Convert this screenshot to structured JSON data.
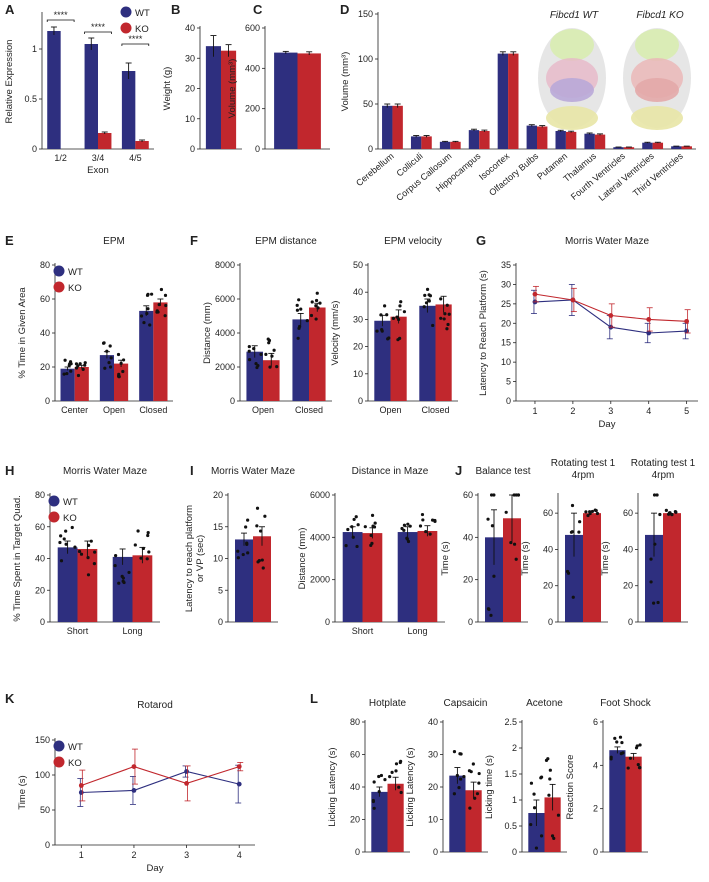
{
  "colors": {
    "wt": "#2e2f7f",
    "ko": "#c1272d",
    "text": "#222222",
    "brain_wt": "#b9a8d8",
    "brain_ko": "#e3a8a8"
  },
  "legend": {
    "wt": "WT",
    "ko": "KO"
  },
  "brain": {
    "wt_label": "Fibcd1 WT",
    "ko_label": "Fibcd1 KO"
  },
  "chart_data": [
    {
      "id": "A",
      "panel_label": "A",
      "type": "bar",
      "title": "",
      "ylabel": "Relative Expression",
      "xlabel": "Exon",
      "categories": [
        "1/2",
        "3/4",
        "4/5"
      ],
      "ylim": [
        0,
        1.35
      ],
      "yticks": [
        "0",
        "0.5",
        "1"
      ],
      "ytick_values": [
        0,
        0.5,
        1
      ],
      "legend": true,
      "significance": [
        "****",
        "****",
        "****"
      ],
      "series": [
        {
          "name": "WT",
          "values": [
            1.18,
            1.05,
            0.78
          ],
          "errors": [
            0.04,
            0.06,
            0.08
          ]
        },
        {
          "name": "KO",
          "values": [
            0.0,
            0.16,
            0.08
          ],
          "errors": [
            0.0,
            0.01,
            0.01
          ]
        }
      ]
    },
    {
      "id": "B",
      "panel_label": "B",
      "type": "bar",
      "title": "",
      "ylabel": "Weight (g)",
      "xlabel": "",
      "categories": [
        ""
      ],
      "ylim": [
        0,
        40
      ],
      "yticks": [
        "0",
        "10",
        "20",
        "30",
        "40"
      ],
      "ytick_values": [
        0,
        10,
        20,
        30,
        40
      ],
      "series": [
        {
          "name": "WT",
          "values": [
            34
          ],
          "errors": [
            3.5
          ]
        },
        {
          "name": "KO",
          "values": [
            32.5
          ],
          "errors": [
            2
          ]
        }
      ]
    },
    {
      "id": "C",
      "panel_label": "C",
      "type": "bar",
      "title": "",
      "ylabel": "Volume (mm³)",
      "xlabel": "",
      "categories": [
        ""
      ],
      "ylim": [
        0,
        600
      ],
      "yticks": [
        "0",
        "200",
        "400",
        "600"
      ],
      "ytick_values": [
        0,
        200,
        400,
        600
      ],
      "series": [
        {
          "name": "WT",
          "values": [
            478
          ],
          "errors": [
            6
          ]
        },
        {
          "name": "KO",
          "values": [
            474
          ],
          "errors": [
            8
          ]
        }
      ]
    },
    {
      "id": "D",
      "panel_label": "D",
      "type": "bar",
      "title": "",
      "ylabel": "Volume (mm³)",
      "xlabel": "",
      "categories": [
        "Cerebellum",
        "Colliculi",
        "Corpus Callosum",
        "Hippocampus",
        "Isocortex",
        "Olfactory Bulbs",
        "Putamen",
        "Thalamus",
        "Fourth Ventricles",
        "Lateral Ventricles",
        "Third Ventricles"
      ],
      "ylim": [
        0,
        150
      ],
      "yticks": [
        "0",
        "50",
        "100",
        "150"
      ],
      "ytick_values": [
        0,
        50,
        100,
        150
      ],
      "rotate_labels": true,
      "series": [
        {
          "name": "WT",
          "values": [
            48,
            14,
            8,
            21,
            106,
            26,
            20,
            17,
            2,
            7,
            3
          ],
          "errors": [
            2,
            1,
            0.5,
            1,
            2,
            1,
            0.8,
            0.8,
            0.2,
            0.5,
            0.2
          ]
        },
        {
          "name": "KO",
          "values": [
            48,
            14,
            8,
            20,
            106,
            25,
            19,
            16,
            2,
            7,
            3
          ],
          "errors": [
            2,
            1,
            0.5,
            1,
            2,
            1,
            0.8,
            0.8,
            0.2,
            0.5,
            0.2
          ]
        }
      ]
    },
    {
      "id": "E",
      "panel_label": "E",
      "type": "bar",
      "title": "EPM",
      "ylabel": "% Time in Given Area",
      "xlabel": "",
      "categories": [
        "Center",
        "Open",
        "Closed"
      ],
      "ylim": [
        0,
        80
      ],
      "yticks": [
        "0",
        "20",
        "40",
        "60",
        "80"
      ],
      "ytick_values": [
        0,
        20,
        40,
        60,
        80
      ],
      "legend": true,
      "dots": true,
      "series": [
        {
          "name": "WT",
          "values": [
            19,
            27,
            53
          ],
          "errors": [
            1,
            2,
            3
          ]
        },
        {
          "name": "KO",
          "values": [
            20,
            22,
            58
          ],
          "errors": [
            1,
            2,
            2
          ]
        }
      ]
    },
    {
      "id": "F1",
      "panel_label": "F",
      "type": "bar",
      "title": "EPM distance",
      "ylabel": "Distance (mm)",
      "xlabel": "",
      "categories": [
        "Open",
        "Closed"
      ],
      "ylim": [
        0,
        8000
      ],
      "yticks": [
        "0",
        "2000",
        "4000",
        "6000",
        "8000"
      ],
      "ytick_values": [
        0,
        2000,
        4000,
        6000,
        8000
      ],
      "dots": true,
      "series": [
        {
          "name": "WT",
          "values": [
            2900,
            4800
          ],
          "errors": [
            350,
            350
          ]
        },
        {
          "name": "KO",
          "values": [
            2400,
            5500
          ],
          "errors": [
            400,
            250
          ]
        }
      ]
    },
    {
      "id": "F2",
      "panel_label": "",
      "type": "bar",
      "title": "EPM velocity",
      "ylabel": "Velocity (mm/s)",
      "xlabel": "",
      "categories": [
        "Open",
        "Closed"
      ],
      "ylim": [
        0,
        50
      ],
      "yticks": [
        "0",
        "10",
        "20",
        "30",
        "40",
        "50"
      ],
      "ytick_values": [
        0,
        10,
        20,
        30,
        40,
        50
      ],
      "dots": true,
      "series": [
        {
          "name": "WT",
          "values": [
            29.5,
            35
          ],
          "errors": [
            2,
            2.5
          ]
        },
        {
          "name": "KO",
          "values": [
            31,
            35.5
          ],
          "errors": [
            2.5,
            3
          ]
        }
      ]
    },
    {
      "id": "G",
      "panel_label": "G",
      "type": "line",
      "title": "Morris Water Maze",
      "ylabel": "Latency to Reach Platform (s)",
      "xlabel": "Day",
      "x": [
        1,
        2,
        3,
        4,
        5
      ],
      "xlim": [
        0.5,
        5.3
      ],
      "ylim": [
        0,
        35
      ],
      "yticks": [
        "0",
        "5",
        "10",
        "15",
        "20",
        "25",
        "30",
        "35"
      ],
      "ytick_values": [
        0,
        5,
        10,
        15,
        20,
        25,
        30,
        35
      ],
      "xticks": [
        "1",
        "2",
        "3",
        "4",
        "5"
      ],
      "series": [
        {
          "name": "WT",
          "values": [
            25.5,
            26,
            19,
            17.5,
            18
          ],
          "errors": [
            3,
            4,
            3,
            2.5,
            2
          ]
        },
        {
          "name": "KO",
          "values": [
            27.5,
            26,
            22,
            21,
            20.5
          ],
          "errors": [
            2,
            3,
            3,
            3,
            3
          ]
        }
      ]
    },
    {
      "id": "H",
      "panel_label": "H",
      "type": "bar",
      "title": "Morris Water Maze",
      "ylabel": "% Time Spent in Target Quad.",
      "xlabel": "",
      "categories": [
        "Short",
        "Long"
      ],
      "ylim": [
        0,
        80
      ],
      "yticks": [
        "0",
        "20",
        "40",
        "60",
        "80"
      ],
      "ytick_values": [
        0,
        20,
        40,
        60,
        80
      ],
      "legend": true,
      "dots": true,
      "series": [
        {
          "name": "WT",
          "values": [
            47,
            41
          ],
          "errors": [
            4,
            5
          ]
        },
        {
          "name": "KO",
          "values": [
            46,
            42
          ],
          "errors": [
            5,
            5
          ]
        }
      ]
    },
    {
      "id": "I1",
      "panel_label": "I",
      "type": "bar",
      "title": "Morris Water Maze",
      "ylabel": "Latency to reach platform or VP (sec)",
      "xlabel": "",
      "categories": [
        ""
      ],
      "ylim": [
        0,
        20
      ],
      "yticks": [
        "0",
        "5",
        "10",
        "15",
        "20"
      ],
      "ytick_values": [
        0,
        5,
        10,
        15,
        20
      ],
      "dots": true,
      "series": [
        {
          "name": "WT",
          "values": [
            13
          ],
          "errors": [
            1
          ]
        },
        {
          "name": "KO",
          "values": [
            13.5
          ],
          "errors": [
            1.5
          ]
        }
      ]
    },
    {
      "id": "I2",
      "panel_label": "",
      "type": "bar",
      "title": "Distance in Maze",
      "ylabel": "Distance (mm)",
      "xlabel": "",
      "categories": [
        "Short",
        "Long"
      ],
      "ylim": [
        0,
        6000
      ],
      "yticks": [
        "0",
        "2000",
        "4000",
        "6000"
      ],
      "ytick_values": [
        0,
        2000,
        4000,
        6000
      ],
      "dots": true,
      "series": [
        {
          "name": "WT",
          "values": [
            4250,
            4250
          ],
          "errors": [
            250,
            250
          ]
        },
        {
          "name": "KO",
          "values": [
            4200,
            4300
          ],
          "errors": [
            250,
            250
          ]
        }
      ]
    },
    {
      "id": "J1",
      "panel_label": "J",
      "type": "bar",
      "title": "Balance test",
      "ylabel": "Time (s)",
      "xlabel": "",
      "categories": [
        ""
      ],
      "ylim": [
        0,
        60
      ],
      "yticks": [
        "0",
        "20",
        "40",
        "60"
      ],
      "ytick_values": [
        0,
        20,
        40,
        60
      ],
      "dots": true,
      "series": [
        {
          "name": "WT",
          "values": [
            40
          ],
          "errors": [
            13
          ]
        },
        {
          "name": "KO",
          "values": [
            49
          ],
          "errors": [
            11
          ]
        }
      ]
    },
    {
      "id": "J2",
      "panel_label": "",
      "type": "bar",
      "title": "Rotating test 1\n4rpm",
      "ylabel": "Time (s)",
      "xlabel": "",
      "categories": [
        ""
      ],
      "ylim": [
        0,
        70
      ],
      "yticks": [
        "0",
        "20",
        "40",
        "60"
      ],
      "ytick_values": [
        0,
        20,
        40,
        60
      ],
      "dots": true,
      "series": [
        {
          "name": "WT",
          "values": [
            48
          ],
          "errors": [
            12
          ]
        },
        {
          "name": "KO",
          "values": [
            60
          ],
          "errors": [
            0
          ]
        }
      ]
    },
    {
      "id": "J3",
      "panel_label": "",
      "type": "bar",
      "title": "Rotating test 1\n4rpm",
      "ylabel": "Time (s)",
      "xlabel": "",
      "categories": [
        ""
      ],
      "ylim": [
        0,
        70
      ],
      "yticks": [
        "0",
        "20",
        "40",
        "60"
      ],
      "ytick_values": [
        0,
        20,
        40,
        60
      ],
      "dots": true,
      "series": [
        {
          "name": "WT",
          "values": [
            48
          ],
          "errors": [
            12
          ]
        },
        {
          "name": "KO",
          "values": [
            60
          ],
          "errors": [
            0
          ]
        }
      ]
    },
    {
      "id": "K",
      "panel_label": "K",
      "type": "line",
      "title": "Rotarod",
      "ylabel": "Time (s)",
      "xlabel": "Day",
      "x": [
        1,
        2,
        3,
        4
      ],
      "xlim": [
        0.5,
        4.3
      ],
      "ylim": [
        0,
        150
      ],
      "yticks": [
        "0",
        "50",
        "100",
        "150"
      ],
      "ytick_values": [
        0,
        50,
        100,
        150
      ],
      "xticks": [
        "1",
        "2",
        "3",
        "4"
      ],
      "legend": true,
      "series": [
        {
          "name": "WT",
          "values": [
            75,
            78,
            105,
            87
          ],
          "errors": [
            20,
            20,
            8,
            27
          ]
        },
        {
          "name": "KO",
          "values": [
            85,
            112,
            88,
            112
          ],
          "errors": [
            22,
            25,
            25,
            6
          ]
        }
      ]
    },
    {
      "id": "L1",
      "panel_label": "L",
      "type": "bar",
      "title": "Hotplate",
      "ylabel": "Licking Latency (s)",
      "xlabel": "",
      "categories": [
        ""
      ],
      "ylim": [
        0,
        80
      ],
      "yticks": [
        "0",
        "20",
        "40",
        "60",
        "80"
      ],
      "ytick_values": [
        0,
        20,
        40,
        60,
        80
      ],
      "dots": true,
      "series": [
        {
          "name": "WT",
          "values": [
            37
          ],
          "errors": [
            3
          ]
        },
        {
          "name": "KO",
          "values": [
            42
          ],
          "errors": [
            4
          ]
        }
      ]
    },
    {
      "id": "L2",
      "panel_label": "",
      "type": "bar",
      "title": "Capsaicin",
      "ylabel": "Licking Latency (s)",
      "xlabel": "",
      "categories": [
        ""
      ],
      "ylim": [
        0,
        40
      ],
      "yticks": [
        "0",
        "10",
        "20",
        "30",
        "40"
      ],
      "ytick_values": [
        0,
        10,
        20,
        30,
        40
      ],
      "dots": true,
      "series": [
        {
          "name": "WT",
          "values": [
            23.5
          ],
          "errors": [
            2.5
          ]
        },
        {
          "name": "KO",
          "values": [
            19
          ],
          "errors": [
            2.5
          ]
        }
      ]
    },
    {
      "id": "L3",
      "panel_label": "",
      "type": "bar",
      "title": "Acetone",
      "ylabel": "Licking time (s)",
      "xlabel": "",
      "categories": [
        ""
      ],
      "ylim": [
        0,
        2.5
      ],
      "yticks": [
        "0",
        "0.5",
        "1",
        "1.5",
        "2",
        "2.5"
      ],
      "ytick_values": [
        0,
        0.5,
        1,
        1.5,
        2,
        2.5
      ],
      "dots": true,
      "series": [
        {
          "name": "WT",
          "values": [
            0.75
          ],
          "errors": [
            0.25
          ]
        },
        {
          "name": "KO",
          "values": [
            1.05
          ],
          "errors": [
            0.25
          ]
        }
      ]
    },
    {
      "id": "L4",
      "panel_label": "",
      "type": "bar",
      "title": "Foot Shock",
      "ylabel": "Reaction Score",
      "xlabel": "",
      "categories": [
        ""
      ],
      "ylim": [
        0,
        6
      ],
      "yticks": [
        "0",
        "2",
        "4",
        "6"
      ],
      "ytick_values": [
        0,
        2,
        4,
        6
      ],
      "dots": true,
      "series": [
        {
          "name": "WT",
          "values": [
            4.7
          ],
          "errors": [
            0.15
          ]
        },
        {
          "name": "KO",
          "values": [
            4.4
          ],
          "errors": [
            0.15
          ]
        }
      ]
    }
  ]
}
